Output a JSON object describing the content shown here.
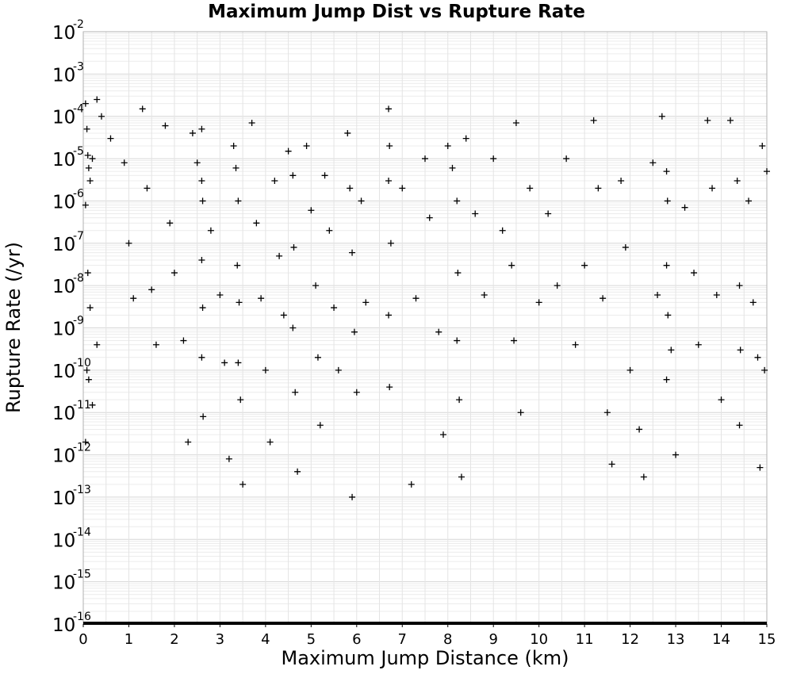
{
  "chart_data": {
    "type": "scatter",
    "title": "Maximum Jump Dist vs Rupture Rate",
    "xlabel": "Maximum Jump Distance (km)",
    "ylabel": "Rupture Rate (/yr)",
    "xlim": [
      0,
      15
    ],
    "ylim": [
      1e-16,
      0.01
    ],
    "xscale": "linear",
    "yscale": "log",
    "grid": true,
    "marker": "+",
    "marker_color": "#000000",
    "x_ticks": [
      "0",
      "1",
      "2",
      "3",
      "4",
      "5",
      "6",
      "7",
      "8",
      "9",
      "10",
      "11",
      "12",
      "13",
      "14",
      "15"
    ],
    "y_ticks": [
      {
        "base": "10",
        "exp": "-16"
      },
      {
        "base": "10",
        "exp": "-15"
      },
      {
        "base": "10",
        "exp": "-14"
      },
      {
        "base": "10",
        "exp": "-13"
      },
      {
        "base": "10",
        "exp": "-12"
      },
      {
        "base": "10",
        "exp": "-11"
      },
      {
        "base": "10",
        "exp": "-10"
      },
      {
        "base": "10",
        "exp": "-9"
      },
      {
        "base": "10",
        "exp": "-8"
      },
      {
        "base": "10",
        "exp": "-7"
      },
      {
        "base": "10",
        "exp": "-6"
      },
      {
        "base": "10",
        "exp": "-5"
      },
      {
        "base": "10",
        "exp": "-4"
      },
      {
        "base": "10",
        "exp": "-3"
      },
      {
        "base": "10",
        "exp": "-2"
      }
    ],
    "points": [
      [
        0.05,
        0.0002
      ],
      [
        0.08,
        5e-05
      ],
      [
        0.1,
        1.2e-05
      ],
      [
        0.12,
        6e-06
      ],
      [
        0.15,
        3e-06
      ],
      [
        0.2,
        1e-05
      ],
      [
        0.3,
        0.00025
      ],
      [
        0.4,
        0.0001
      ],
      [
        0.05,
        8e-07
      ],
      [
        0.1,
        2e-08
      ],
      [
        0.15,
        3e-09
      ],
      [
        0.08,
        1e-10
      ],
      [
        0.12,
        6e-11
      ],
      [
        0.2,
        1.5e-11
      ],
      [
        0.05,
        2e-12
      ],
      [
        0.3,
        4e-10
      ],
      [
        0.6,
        3e-05
      ],
      [
        0.9,
        8e-06
      ],
      [
        1.0,
        1e-07
      ],
      [
        1.1,
        5e-09
      ],
      [
        1.3,
        0.00015
      ],
      [
        1.4,
        2e-06
      ],
      [
        1.5,
        8e-09
      ],
      [
        1.6,
        4e-10
      ],
      [
        1.8,
        6e-05
      ],
      [
        1.9,
        3e-07
      ],
      [
        2.0,
        2e-08
      ],
      [
        2.2,
        5e-10
      ],
      [
        2.3,
        2e-12
      ],
      [
        2.4,
        4e-05
      ],
      [
        2.5,
        8e-06
      ],
      [
        2.6,
        3e-06
      ],
      [
        2.62,
        1e-06
      ],
      [
        2.6,
        4e-08
      ],
      [
        2.62,
        3e-09
      ],
      [
        2.6,
        2e-10
      ],
      [
        2.63,
        8e-12
      ],
      [
        2.6,
        5e-05
      ],
      [
        2.8,
        2e-07
      ],
      [
        3.0,
        6e-09
      ],
      [
        3.1,
        1.5e-10
      ],
      [
        3.2,
        8e-13
      ],
      [
        3.3,
        2e-05
      ],
      [
        3.35,
        6e-06
      ],
      [
        3.4,
        1e-06
      ],
      [
        3.38,
        3e-08
      ],
      [
        3.42,
        4e-09
      ],
      [
        3.4,
        1.5e-10
      ],
      [
        3.45,
        2e-11
      ],
      [
        3.5,
        2e-13
      ],
      [
        3.7,
        7e-05
      ],
      [
        3.8,
        3e-07
      ],
      [
        3.9,
        5e-09
      ],
      [
        4.0,
        1e-10
      ],
      [
        4.1,
        2e-12
      ],
      [
        4.2,
        3e-06
      ],
      [
        4.3,
        5e-08
      ],
      [
        4.4,
        2e-09
      ],
      [
        4.5,
        1.5e-05
      ],
      [
        4.6,
        4e-06
      ],
      [
        4.62,
        8e-08
      ],
      [
        4.6,
        1e-09
      ],
      [
        4.65,
        3e-11
      ],
      [
        4.7,
        4e-13
      ],
      [
        4.9,
        2e-05
      ],
      [
        5.0,
        6e-07
      ],
      [
        5.1,
        1e-08
      ],
      [
        5.15,
        2e-10
      ],
      [
        5.2,
        5e-12
      ],
      [
        5.3,
        4e-06
      ],
      [
        5.4,
        2e-07
      ],
      [
        5.5,
        3e-09
      ],
      [
        5.6,
        1e-10
      ],
      [
        5.8,
        4e-05
      ],
      [
        5.85,
        2e-06
      ],
      [
        5.9,
        6e-08
      ],
      [
        5.95,
        8e-10
      ],
      [
        5.9,
        1e-13
      ],
      [
        6.0,
        3e-11
      ],
      [
        6.1,
        1e-06
      ],
      [
        6.2,
        4e-09
      ],
      [
        6.7,
        0.00015
      ],
      [
        6.72,
        2e-05
      ],
      [
        6.7,
        3e-06
      ],
      [
        6.75,
        1e-07
      ],
      [
        6.7,
        2e-09
      ],
      [
        6.72,
        4e-11
      ],
      [
        7.0,
        2e-06
      ],
      [
        7.2,
        2e-13
      ],
      [
        7.3,
        5e-09
      ],
      [
        7.5,
        1e-05
      ],
      [
        7.6,
        4e-07
      ],
      [
        7.8,
        8e-10
      ],
      [
        7.9,
        3e-12
      ],
      [
        8.0,
        2e-05
      ],
      [
        8.1,
        6e-06
      ],
      [
        8.2,
        1e-06
      ],
      [
        8.22,
        2e-08
      ],
      [
        8.2,
        5e-10
      ],
      [
        8.25,
        2e-11
      ],
      [
        8.3,
        3e-13
      ],
      [
        8.4,
        3e-05
      ],
      [
        8.6,
        5e-07
      ],
      [
        8.8,
        6e-09
      ],
      [
        9.0,
        1e-05
      ],
      [
        9.2,
        2e-07
      ],
      [
        9.4,
        3e-08
      ],
      [
        9.45,
        5e-10
      ],
      [
        9.5,
        7e-05
      ],
      [
        9.6,
        1e-11
      ],
      [
        9.8,
        2e-06
      ],
      [
        10.0,
        4e-09
      ],
      [
        10.2,
        5e-07
      ],
      [
        10.4,
        1e-08
      ],
      [
        10.6,
        1e-05
      ],
      [
        10.8,
        4e-10
      ],
      [
        11.0,
        3e-08
      ],
      [
        11.2,
        8e-05
      ],
      [
        11.3,
        2e-06
      ],
      [
        11.4,
        5e-09
      ],
      [
        11.5,
        1e-11
      ],
      [
        11.6,
        6e-13
      ],
      [
        11.8,
        3e-06
      ],
      [
        11.9,
        8e-08
      ],
      [
        12.0,
        1e-10
      ],
      [
        12.2,
        4e-12
      ],
      [
        12.3,
        3e-13
      ],
      [
        12.5,
        8e-06
      ],
      [
        12.6,
        6e-09
      ],
      [
        12.7,
        0.0001
      ],
      [
        12.8,
        5e-06
      ],
      [
        12.82,
        1e-06
      ],
      [
        12.8,
        3e-08
      ],
      [
        12.83,
        2e-09
      ],
      [
        12.8,
        6e-11
      ],
      [
        12.9,
        3e-10
      ],
      [
        13.0,
        1e-12
      ],
      [
        13.2,
        7e-07
      ],
      [
        13.4,
        2e-08
      ],
      [
        13.5,
        4e-10
      ],
      [
        13.7,
        8e-05
      ],
      [
        13.8,
        2e-06
      ],
      [
        13.9,
        6e-09
      ],
      [
        14.0,
        2e-11
      ],
      [
        14.2,
        8e-05
      ],
      [
        14.35,
        3e-06
      ],
      [
        14.4,
        1e-08
      ],
      [
        14.42,
        3e-10
      ],
      [
        14.4,
        5e-12
      ],
      [
        14.6,
        1e-06
      ],
      [
        14.7,
        4e-09
      ],
      [
        14.8,
        2e-10
      ],
      [
        14.9,
        2e-05
      ],
      [
        15.0,
        5e-06
      ],
      [
        14.95,
        1e-10
      ],
      [
        14.85,
        5e-13
      ]
    ],
    "zero_rate_baseline": {
      "y": 1e-16,
      "x_range": [
        0,
        15
      ]
    }
  }
}
